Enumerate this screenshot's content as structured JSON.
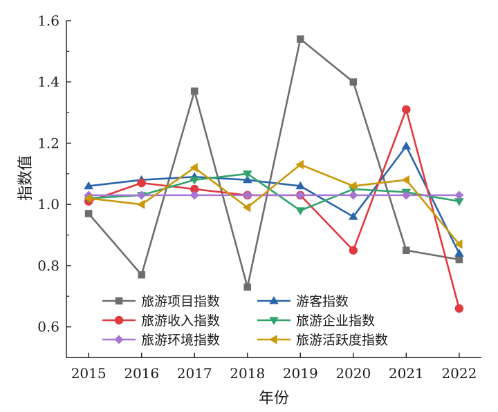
{
  "chart_data": {
    "type": "line",
    "xlabel": "年份",
    "ylabel": "指数值",
    "x": [
      2015,
      2016,
      2017,
      2018,
      2019,
      2020,
      2021,
      2022
    ],
    "x_tick_labels": [
      "2015",
      "2016",
      "2017",
      "2018",
      "2019",
      "2020",
      "2021",
      "2022"
    ],
    "ylim": [
      0.5,
      1.6
    ],
    "y_ticks": [
      0.6,
      0.8,
      1.0,
      1.2,
      1.4,
      1.6
    ],
    "y_tick_labels": [
      "0.6",
      "0.8",
      "1.0",
      "1.2",
      "1.4",
      "1.6"
    ],
    "grid": false,
    "legend_position": "bottom-left",
    "series": [
      {
        "name": "旅游项目指数",
        "color": "#6d6d6d",
        "marker": "square",
        "values": [
          0.97,
          0.77,
          1.37,
          0.73,
          1.54,
          1.4,
          0.85,
          0.82
        ]
      },
      {
        "name": "游客指数",
        "color": "#2a64aa",
        "marker": "triangle-up",
        "values": [
          1.06,
          1.08,
          1.09,
          1.08,
          1.06,
          0.96,
          1.19,
          0.84
        ]
      },
      {
        "name": "旅游收入指数",
        "color": "#e0393e",
        "marker": "circle",
        "values": [
          1.01,
          1.07,
          1.05,
          1.03,
          1.03,
          0.85,
          1.31,
          0.66
        ]
      },
      {
        "name": "旅游企业指数",
        "color": "#2fa36b",
        "marker": "triangle-down",
        "values": [
          1.02,
          1.03,
          1.08,
          1.1,
          0.98,
          1.05,
          1.04,
          1.01
        ]
      },
      {
        "name": "旅游环境指数",
        "color": "#a575d2",
        "marker": "diamond",
        "values": [
          1.03,
          1.03,
          1.03,
          1.03,
          1.03,
          1.03,
          1.03,
          1.03
        ]
      },
      {
        "name": "旅游活跃度指数",
        "color": "#c9980b",
        "marker": "triangle-left",
        "values": [
          1.02,
          1.0,
          1.12,
          0.99,
          1.13,
          1.06,
          1.08,
          0.87
        ]
      }
    ]
  }
}
